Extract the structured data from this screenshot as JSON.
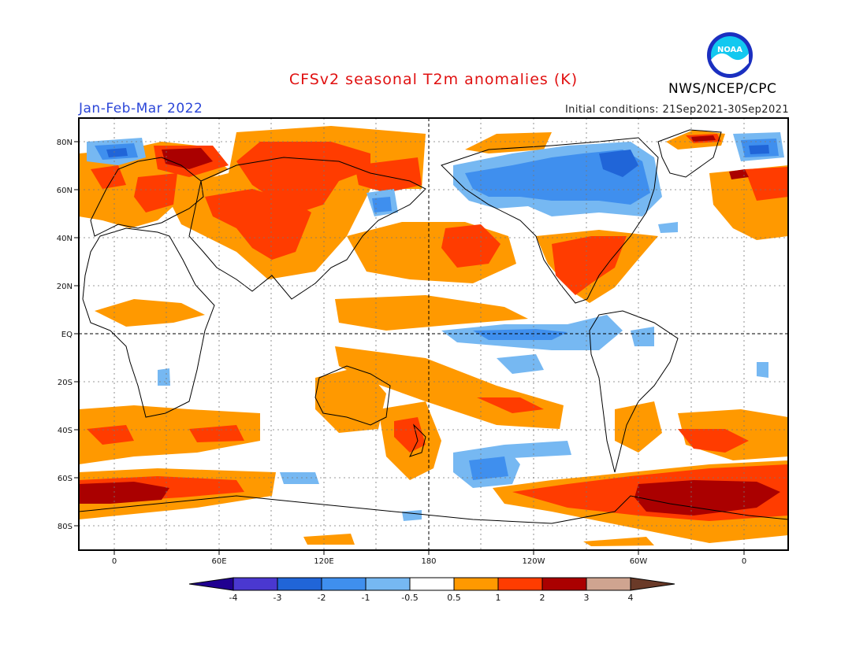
{
  "header": {
    "title": "CFSv2 seasonal T2m anomalies (K)",
    "period": "Jan-Feb-Mar 2022",
    "initial_conditions": "Initial conditions: 21Sep2021-30Sep2021",
    "agency": "NWS/NCEP/CPC",
    "logo_text": "NOAA"
  },
  "map": {
    "projection": "equirectangular",
    "lon_range": [
      -20,
      382
    ],
    "lat_range": [
      -90,
      90
    ],
    "lat_labels": [
      "80N",
      "60N",
      "40N",
      "20N",
      "EQ",
      "20S",
      "40S",
      "60S",
      "80S"
    ],
    "lon_labels": [
      "0",
      "60E",
      "120E",
      "180",
      "120W",
      "60W",
      "0"
    ],
    "gridlines": "dotted",
    "dashed_lines": [
      "EQ",
      "180"
    ]
  },
  "colorbar": {
    "labels": [
      "-4",
      "-3",
      "-2",
      "-1",
      "-0.5",
      "0.5",
      "1",
      "2",
      "3",
      "4"
    ],
    "colors": [
      "#200090",
      "#4a38d0",
      "#2065d8",
      "#3f8fee",
      "#76b8f2",
      "#ffffff",
      "#ff9900",
      "#ff3c00",
      "#aa0000",
      "#cfa490",
      "#6a3a28"
    ]
  },
  "anomaly_colors": {
    "light_warm": "#ff9900",
    "warm": "#ff3c00",
    "very_warm": "#aa0000",
    "cool": "#76b8f2",
    "cold": "#3f8fee",
    "very_cold": "#2065d8"
  }
}
